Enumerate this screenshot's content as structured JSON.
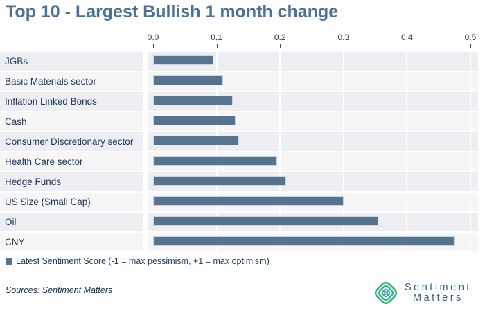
{
  "title": "Top 10 - Largest Bullish 1 month change",
  "chart_data": {
    "type": "bar",
    "orientation": "horizontal",
    "title": "Top 10 - Largest Bullish 1 month change",
    "categories": [
      "JGBs",
      "Basic Materials sector",
      "Inflation Linked Bonds",
      "Cash",
      "Consumer Discretionary sector",
      "Health Care sector",
      "Hedge Funds",
      "US Size (Small Cap)",
      "Oil",
      "CNY"
    ],
    "values": [
      0.095,
      0.11,
      0.125,
      0.13,
      0.135,
      0.195,
      0.21,
      0.3,
      0.355,
      0.475
    ],
    "series_name": "Latest Sentiment Score (-1 = max pessimism, +1 = max optimism)",
    "xlim": [
      0,
      0.5
    ],
    "x_ticks": [
      "0.0",
      "0.1",
      "0.2",
      "0.3",
      "0.4",
      "0.5"
    ],
    "x_tick_values": [
      0.0,
      0.1,
      0.2,
      0.3,
      0.4,
      0.5
    ],
    "grid": true,
    "axis_position": "top",
    "legend_position": "bottom-left",
    "bar_color": "#56738f"
  },
  "legend": {
    "label": "Latest Sentiment Score (-1 = max pessimism, +1 = max optimism)",
    "swatch_color": "#56738f"
  },
  "footer": {
    "sources": "Sources: Sentiment Matters"
  },
  "logo": {
    "icon": "concentric-diamond-icon",
    "line1": "Sentiment",
    "line2": "Matters",
    "icon_color": "#35b385",
    "icon_color_inner": "#2aa49c",
    "text_color": "#2d6484"
  },
  "colors": {
    "title": "#4a7296",
    "bar": "#56738f",
    "bar_border": "#ccd5dd",
    "row_band_dark": "#eceef1",
    "row_band_light": "#f6f6f7",
    "label_text": "#21395c",
    "axis_text": "#333333",
    "legend_text": "#1f3a5c"
  }
}
